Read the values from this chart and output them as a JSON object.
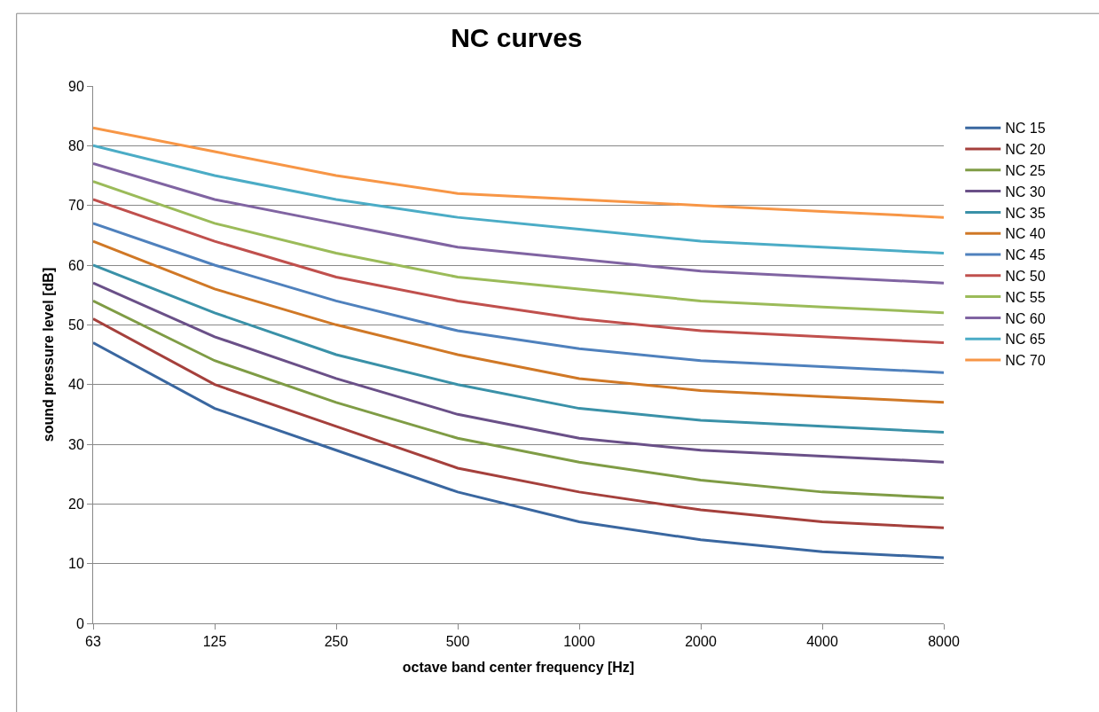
{
  "chart_data": {
    "type": "line",
    "title": "NC curves",
    "xlabel": "octave band center frequency [Hz]",
    "ylabel": "sound pressure level [dB]",
    "categories": [
      "63",
      "125",
      "250",
      "500",
      "1000",
      "2000",
      "4000",
      "8000"
    ],
    "ylim": [
      0,
      90
    ],
    "yticks": [
      0,
      10,
      20,
      30,
      40,
      50,
      60,
      70,
      80,
      90
    ],
    "grid": "y",
    "legend": "right",
    "marker": "none",
    "line_style": "solid",
    "series": [
      {
        "name": "NC 15",
        "color": "#3a67a0",
        "values": [
          47,
          36,
          29,
          22,
          17,
          14,
          12,
          11
        ]
      },
      {
        "name": "NC 20",
        "color": "#a5403c",
        "values": [
          51,
          40,
          33,
          26,
          22,
          19,
          17,
          16
        ]
      },
      {
        "name": "NC 25",
        "color": "#7f9c45",
        "values": [
          54,
          44,
          37,
          31,
          27,
          24,
          22,
          21
        ]
      },
      {
        "name": "NC 30",
        "color": "#6a5088",
        "values": [
          57,
          48,
          41,
          35,
          31,
          29,
          28,
          27
        ]
      },
      {
        "name": "NC 35",
        "color": "#3a91a8",
        "values": [
          60,
          52,
          45,
          40,
          36,
          34,
          33,
          32
        ]
      },
      {
        "name": "NC 40",
        "color": "#d07826",
        "values": [
          64,
          56,
          50,
          45,
          41,
          39,
          38,
          37
        ]
      },
      {
        "name": "NC 45",
        "color": "#4f81bd",
        "values": [
          67,
          60,
          54,
          49,
          46,
          44,
          43,
          42
        ]
      },
      {
        "name": "NC 50",
        "color": "#c0504d",
        "values": [
          71,
          64,
          58,
          54,
          51,
          49,
          48,
          47
        ]
      },
      {
        "name": "NC 55",
        "color": "#9bbb59",
        "values": [
          74,
          67,
          62,
          58,
          56,
          54,
          53,
          52
        ]
      },
      {
        "name": "NC 60",
        "color": "#8064a2",
        "values": [
          77,
          71,
          67,
          63,
          61,
          59,
          58,
          57
        ]
      },
      {
        "name": "NC 65",
        "color": "#4bacc6",
        "values": [
          80,
          75,
          71,
          68,
          66,
          64,
          63,
          62
        ]
      },
      {
        "name": "NC 70",
        "color": "#f79646",
        "values": [
          83,
          79,
          75,
          72,
          71,
          70,
          69,
          68
        ]
      }
    ]
  }
}
